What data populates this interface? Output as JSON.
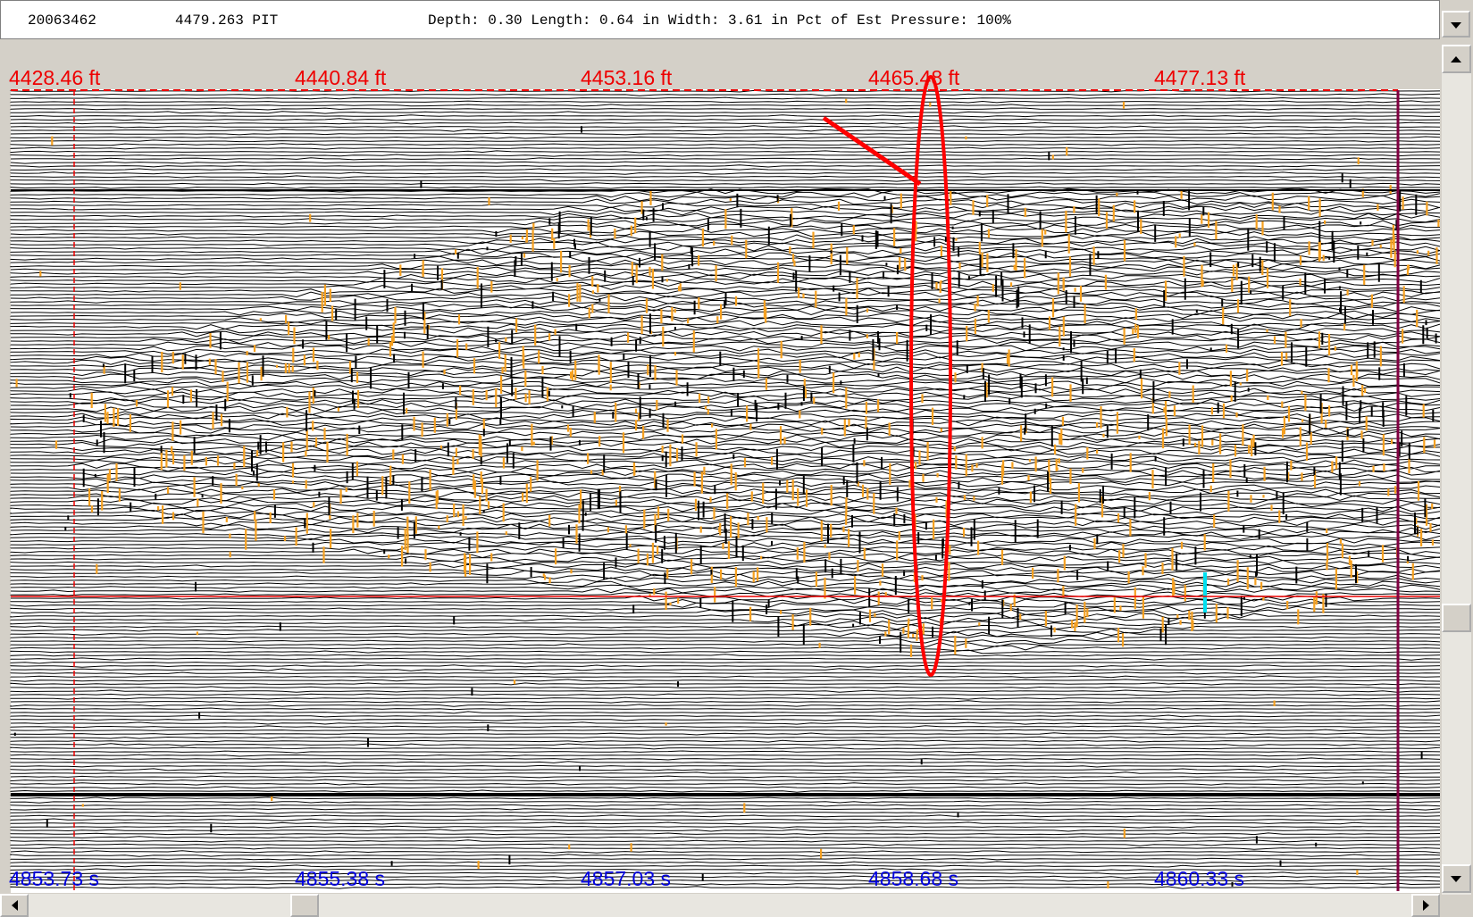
{
  "header": {
    "id": "20063462",
    "feature": "4479.263 PIT",
    "details": "Depth: 0.30 Length: 0.64 in Width: 3.61 in Pct of Est Pressure: 100%"
  },
  "distance_labels": [
    "4428.46 ft",
    "4440.84 ft",
    "4453.16 ft",
    "4465.48 ft",
    "4477.13 ft"
  ],
  "time_labels": [
    "4853.73 s",
    "4855.38 s",
    "4857.03 s",
    "4858.68 s",
    "4860.33 s"
  ]
}
